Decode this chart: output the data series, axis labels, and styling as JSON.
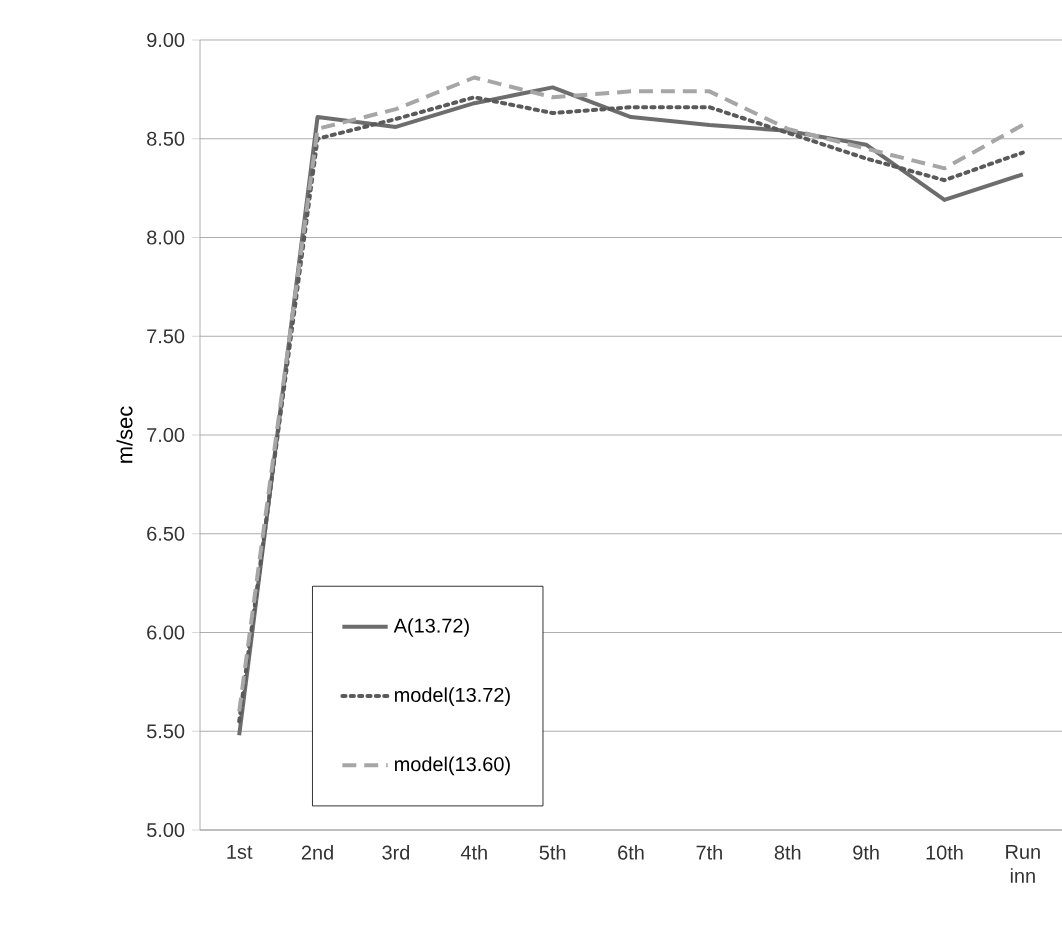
{
  "chart_data": {
    "type": "line",
    "ylabel": "m/sec",
    "categories": [
      "1st",
      "2nd",
      "3rd",
      "4th",
      "5th",
      "6th",
      "7th",
      "8th",
      "9th",
      "10th",
      "Run inn"
    ],
    "series": [
      {
        "name": "A(13.72)",
        "color": "#6d6d6d",
        "line_style": "solid",
        "values": [
          5.48,
          8.61,
          8.56,
          8.68,
          8.76,
          8.61,
          8.57,
          8.54,
          8.47,
          8.19,
          8.32
        ]
      },
      {
        "name": "model(13.72)",
        "color": "#5a5a5a",
        "line_style": "dotted",
        "values": [
          5.55,
          8.5,
          8.6,
          8.71,
          8.63,
          8.66,
          8.66,
          8.53,
          8.4,
          8.29,
          8.43
        ]
      },
      {
        "name": "model(13.60)",
        "color": "#a6a6a6",
        "line_style": "dashed",
        "values": [
          5.6,
          8.55,
          8.65,
          8.81,
          8.71,
          8.74,
          8.74,
          8.55,
          8.45,
          8.35,
          8.57
        ]
      }
    ],
    "ylim": [
      5,
      9
    ],
    "yticks": [
      {
        "value": 5,
        "label": "5.00"
      },
      {
        "value": 5.5,
        "label": "5.50"
      },
      {
        "value": 6,
        "label": "6.00"
      },
      {
        "value": 6.5,
        "label": "6.50"
      },
      {
        "value": 7,
        "label": "7.00"
      },
      {
        "value": 7.5,
        "label": "7.50"
      },
      {
        "value": 8,
        "label": "8.00"
      },
      {
        "value": 8.5,
        "label": "8.50"
      },
      {
        "value": 9,
        "label": "9.00"
      }
    ],
    "grid": "y",
    "legend": "bottom left",
    "marker": "none"
  }
}
